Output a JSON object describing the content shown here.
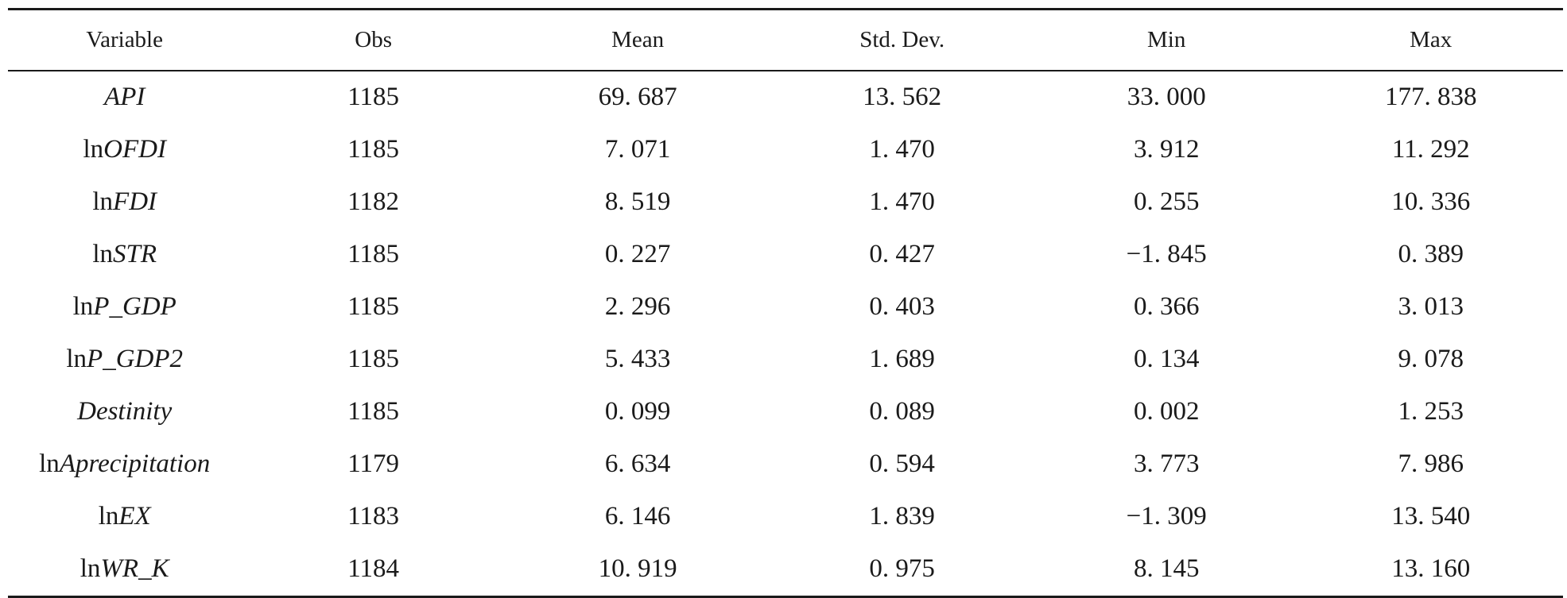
{
  "columns": [
    "Variable",
    "Obs",
    "Mean",
    "Std. Dev.",
    "Min",
    "Max"
  ],
  "rows": [
    {
      "prefix": "",
      "name": "API",
      "obs": "1185",
      "mean": "69. 687",
      "sd": "13. 562",
      "min": "33. 000",
      "max": "177. 838"
    },
    {
      "prefix": "ln",
      "name": "OFDI",
      "obs": "1185",
      "mean": "7. 071",
      "sd": "1. 470",
      "min": "3. 912",
      "max": "11. 292"
    },
    {
      "prefix": "ln",
      "name": "FDI",
      "obs": "1182",
      "mean": "8. 519",
      "sd": "1. 470",
      "min": "0. 255",
      "max": "10. 336"
    },
    {
      "prefix": "ln",
      "name": "STR",
      "obs": "1185",
      "mean": "0. 227",
      "sd": "0. 427",
      "min": "−1. 845",
      "max": "0. 389"
    },
    {
      "prefix": "ln",
      "name": "P_GDP",
      "obs": "1185",
      "mean": "2. 296",
      "sd": "0. 403",
      "min": "0. 366",
      "max": "3. 013"
    },
    {
      "prefix": "ln",
      "name": "P_GDP2",
      "obs": "1185",
      "mean": "5. 433",
      "sd": "1. 689",
      "min": "0. 134",
      "max": "9. 078"
    },
    {
      "prefix": "",
      "name": "Destinity",
      "obs": "1185",
      "mean": "0. 099",
      "sd": "0. 089",
      "min": "0. 002",
      "max": "1. 253"
    },
    {
      "prefix": "ln",
      "name": "Aprecipitation",
      "obs": "1179",
      "mean": "6. 634",
      "sd": "0. 594",
      "min": "3. 773",
      "max": "7. 986"
    },
    {
      "prefix": "ln",
      "name": "EX",
      "obs": "1183",
      "mean": "6. 146",
      "sd": "1. 839",
      "min": "−1. 309",
      "max": "13. 540"
    },
    {
      "prefix": "ln",
      "name": "WR_K",
      "obs": "1184",
      "mean": "10. 919",
      "sd": "0. 975",
      "min": "8. 145",
      "max": "13. 160"
    }
  ]
}
